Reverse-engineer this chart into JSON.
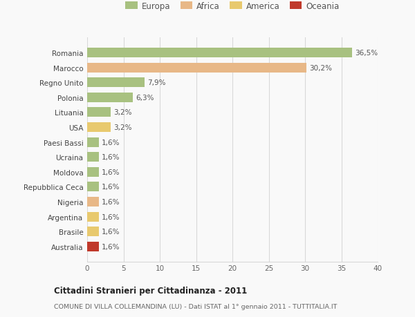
{
  "categories": [
    "Romania",
    "Marocco",
    "Regno Unito",
    "Polonia",
    "Lituania",
    "USA",
    "Paesi Bassi",
    "Ucraina",
    "Moldova",
    "Repubblica Ceca",
    "Nigeria",
    "Argentina",
    "Brasile",
    "Australia"
  ],
  "values": [
    36.5,
    30.2,
    7.9,
    6.3,
    3.2,
    3.2,
    1.6,
    1.6,
    1.6,
    1.6,
    1.6,
    1.6,
    1.6,
    1.6
  ],
  "labels": [
    "36,5%",
    "30,2%",
    "7,9%",
    "6,3%",
    "3,2%",
    "3,2%",
    "1,6%",
    "1,6%",
    "1,6%",
    "1,6%",
    "1,6%",
    "1,6%",
    "1,6%",
    "1,6%"
  ],
  "colors": [
    "#a8c180",
    "#e8b887",
    "#a8c180",
    "#a8c180",
    "#a8c180",
    "#e8c96e",
    "#a8c180",
    "#a8c180",
    "#a8c180",
    "#a8c180",
    "#e8b887",
    "#e8c96e",
    "#e8c96e",
    "#c0392b"
  ],
  "legend_labels": [
    "Europa",
    "Africa",
    "America",
    "Oceania"
  ],
  "legend_colors": [
    "#a8c180",
    "#e8b887",
    "#e8c96e",
    "#c0392b"
  ],
  "title": "Cittadini Stranieri per Cittadinanza - 2011",
  "subtitle": "COMUNE DI VILLA COLLEMANDINA (LU) - Dati ISTAT al 1° gennaio 2011 - TUTTITALIA.IT",
  "xlim": [
    0,
    40
  ],
  "xticks": [
    0,
    5,
    10,
    15,
    20,
    25,
    30,
    35,
    40
  ],
  "bg_color": "#f9f9f9",
  "grid_color": "#d8d8d8",
  "bar_height": 0.65
}
